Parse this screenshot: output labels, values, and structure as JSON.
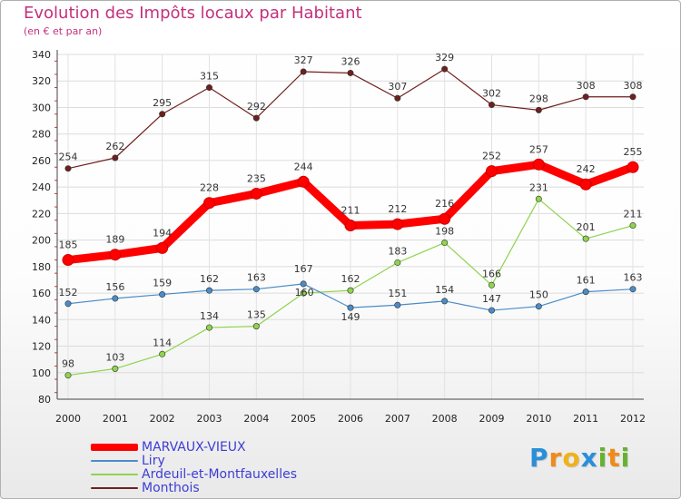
{
  "chart_data": {
    "type": "line",
    "title": "Evolution des Impôts locaux par Habitant",
    "subtitle": "(en € et par an)",
    "xlabel": "",
    "ylabel": "",
    "ylim": [
      80,
      340
    ],
    "ytick_step": 20,
    "x": [
      "2000",
      "2001",
      "2002",
      "2003",
      "2004",
      "2005",
      "2006",
      "2007",
      "2008",
      "2009",
      "2010",
      "2011",
      "2012"
    ],
    "series": [
      {
        "name": "Monthois",
        "color": "#6e1f1f",
        "values": [
          254,
          262,
          295,
          315,
          292,
          327,
          326,
          307,
          329,
          302,
          298,
          308,
          308
        ]
      },
      {
        "name": "Ardeuil-et-Montfauxelles",
        "color": "#8fd34e",
        "values": [
          98,
          103,
          114,
          134,
          135,
          160,
          162,
          183,
          198,
          166,
          231,
          201,
          211
        ]
      },
      {
        "name": "Liry",
        "color": "#4a8cc8",
        "values": [
          152,
          156,
          159,
          162,
          163,
          167,
          149,
          151,
          154,
          147,
          150,
          161,
          163
        ]
      },
      {
        "name": "MARVAUX-VIEUX",
        "color": "#ff0000",
        "values": [
          185,
          189,
          194,
          228,
          235,
          244,
          211,
          212,
          216,
          252,
          257,
          242,
          255
        ]
      }
    ],
    "legend_order": [
      "MARVAUX-VIEUX",
      "Liry",
      "Ardeuil-et-Montfauxelles",
      "Monthois"
    ]
  },
  "logo": {
    "letters": [
      "P",
      "r",
      "o",
      "x",
      "i",
      "t",
      "i"
    ],
    "colors": [
      "#2a8fd9",
      "#f08a1a",
      "#f0b21a",
      "#2a8fd9",
      "#63b32e",
      "#f08a1a",
      "#63b32e"
    ]
  }
}
